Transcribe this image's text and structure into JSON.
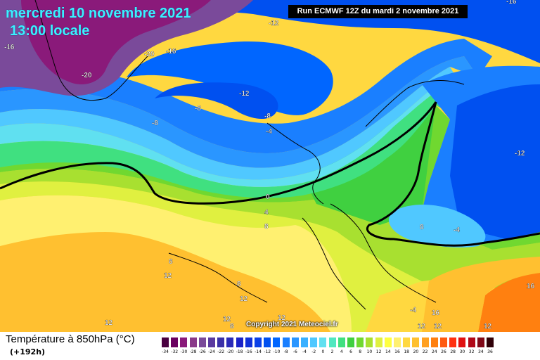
{
  "header": {
    "date_line": "mercredi 10 novembre 2021",
    "time_line": "13:00 locale",
    "run_info": "Run ECMWF 12Z du mardi 2 novembre 2021"
  },
  "footer": {
    "variable_title": "Température à 850hPa (°C)",
    "lead_time": "(+192h)",
    "copyright": "Copyright 2021 Meteociel.fr"
  },
  "legend": {
    "labels": [
      "-34",
      "-32",
      "-30",
      "-28",
      "-26",
      "-24",
      "-22",
      "-20",
      "-18",
      "-16",
      "-14",
      "-12",
      "-10",
      "-8",
      "-6",
      "-4",
      "-2",
      "0",
      "2",
      "4",
      "6",
      "8",
      "10",
      "12",
      "14",
      "16",
      "18",
      "20",
      "22",
      "24",
      "26",
      "28",
      "30",
      "32",
      "34",
      "36"
    ],
    "colors": [
      "#4a0040",
      "#6a0060",
      "#8a1a7a",
      "#8a3a8a",
      "#7a4a9a",
      "#5a3aa0",
      "#3a30a8",
      "#2a2ab8",
      "#1a22c8",
      "#1030d8",
      "#0a40e8",
      "#0050f0",
      "#0066ff",
      "#1a7fff",
      "#2a96ff",
      "#3ab0ff",
      "#50c8ff",
      "#60e0f0",
      "#50e8c0",
      "#40e080",
      "#40d040",
      "#70d830",
      "#a8e030",
      "#e0f040",
      "#ffff40",
      "#fff070",
      "#ffd840",
      "#ffc030",
      "#ffa020",
      "#ff8010",
      "#ff5a10",
      "#ff3010",
      "#e01010",
      "#b00818",
      "#800818",
      "#300008"
    ]
  },
  "contour_labels": [
    {
      "text": "-12",
      "color": "#ffffff"
    },
    {
      "text": "-16",
      "color": "#ffffff"
    },
    {
      "text": "-20",
      "color": "#ffffff"
    },
    {
      "text": "-16",
      "color": "#ffffff"
    },
    {
      "text": "-20",
      "color": "#ffffff"
    },
    {
      "text": "-16",
      "color": "#ffffff"
    },
    {
      "text": "-12",
      "color": "#ffffff"
    },
    {
      "text": "-8",
      "color": "#ffffff"
    },
    {
      "text": "-8",
      "color": "#ffffff"
    },
    {
      "text": "-8",
      "color": "#ffffff"
    },
    {
      "text": "-4",
      "color": "#ffffff"
    },
    {
      "text": "-12",
      "color": "#ffffff"
    },
    {
      "text": "0",
      "color": "#ffffff"
    },
    {
      "text": "4",
      "color": "#ffffff"
    },
    {
      "text": "8",
      "color": "#ffffff"
    },
    {
      "text": "8",
      "color": "#ffffff"
    },
    {
      "text": "12",
      "color": "#ffffff"
    },
    {
      "text": "8",
      "color": "#ffffff"
    },
    {
      "text": "12",
      "color": "#ffffff"
    },
    {
      "text": "12",
      "color": "#ffffff"
    },
    {
      "text": "12",
      "color": "#ffffff"
    },
    {
      "text": "8",
      "color": "#ffffff"
    },
    {
      "text": "8",
      "color": "#ffffff"
    },
    {
      "text": "-4",
      "color": "#ffffff"
    },
    {
      "text": "-4",
      "color": "#ffffff"
    },
    {
      "text": "12",
      "color": "#ffffff"
    },
    {
      "text": "16",
      "color": "#ffffff"
    },
    {
      "text": "12",
      "color": "#ffffff"
    },
    {
      "text": "12",
      "color": "#ffffff"
    },
    {
      "text": "16",
      "color": "#ffffff"
    },
    {
      "text": "12",
      "color": "#ffffff"
    },
    {
      "text": "-16",
      "color": "#ffffff"
    }
  ]
}
